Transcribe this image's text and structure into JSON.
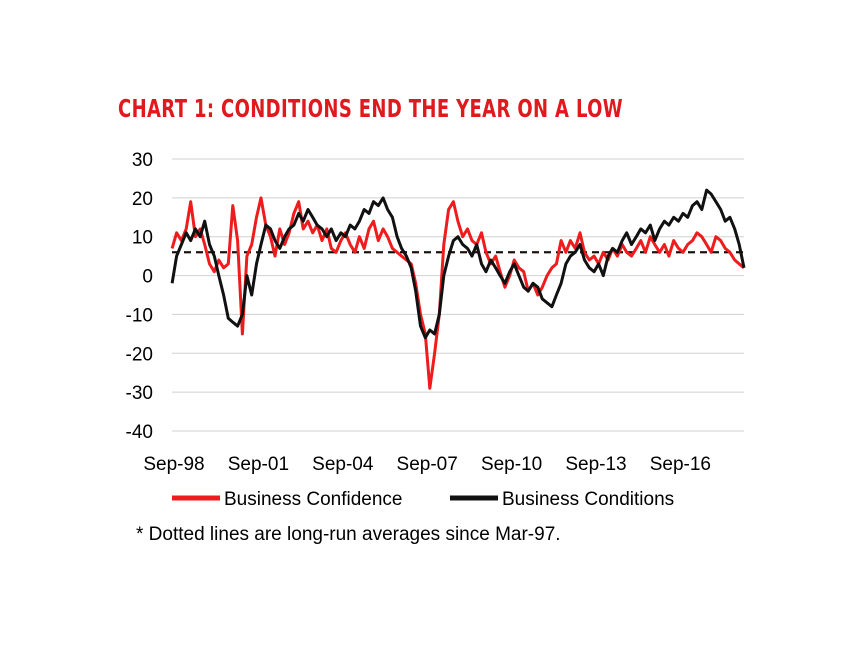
{
  "chart_data": {
    "type": "line",
    "title": "CHART 1: CONDITIONS END THE YEAR ON A LOW",
    "footnote": "* Dotted lines are long-run  averages since Mar-97.",
    "ylim": [
      -40,
      30
    ],
    "yticks": [
      30,
      20,
      10,
      0,
      -10,
      -20,
      -30,
      -40
    ],
    "xtick_labels": [
      "Sep-98",
      "Sep-01",
      "Sep-04",
      "Sep-07",
      "Sep-10",
      "Sep-13",
      "Sep-16"
    ],
    "xtick_values": [
      1998.667,
      2001.667,
      2004.667,
      2007.667,
      2010.667,
      2013.667,
      2016.667
    ],
    "xlim": [
      1998.667,
      2019.0
    ],
    "grid": "horizontal",
    "legend_position": "bottom",
    "series": [
      {
        "name": "Business Confidence",
        "color": "#ee1c1c",
        "average": 6,
        "x": [
          1998.67,
          1998.83,
          1999.0,
          1999.17,
          1999.33,
          1999.5,
          1999.67,
          1999.83,
          2000.0,
          2000.17,
          2000.33,
          2000.5,
          2000.67,
          2000.83,
          2001.0,
          2001.17,
          2001.33,
          2001.5,
          2001.67,
          2001.83,
          2002.0,
          2002.17,
          2002.33,
          2002.5,
          2002.67,
          2002.83,
          2003.0,
          2003.17,
          2003.33,
          2003.5,
          2003.67,
          2003.83,
          2004.0,
          2004.17,
          2004.33,
          2004.5,
          2004.67,
          2004.83,
          2005.0,
          2005.17,
          2005.33,
          2005.5,
          2005.67,
          2005.83,
          2006.0,
          2006.17,
          2006.33,
          2006.5,
          2006.67,
          2006.83,
          2007.0,
          2007.17,
          2007.33,
          2007.5,
          2007.67,
          2007.83,
          2008.0,
          2008.17,
          2008.33,
          2008.5,
          2008.67,
          2008.83,
          2009.0,
          2009.17,
          2009.33,
          2009.5,
          2009.67,
          2009.83,
          2010.0,
          2010.17,
          2010.33,
          2010.5,
          2010.67,
          2010.83,
          2011.0,
          2011.17,
          2011.33,
          2011.5,
          2011.67,
          2011.83,
          2012.0,
          2012.17,
          2012.33,
          2012.5,
          2012.67,
          2012.83,
          2013.0,
          2013.17,
          2013.33,
          2013.5,
          2013.67,
          2013.83,
          2014.0,
          2014.17,
          2014.33,
          2014.5,
          2014.67,
          2014.83,
          2015.0,
          2015.17,
          2015.33,
          2015.5,
          2015.67,
          2015.83,
          2016.0,
          2016.17,
          2016.33,
          2016.5,
          2016.67,
          2016.83,
          2017.0,
          2017.17,
          2017.33,
          2017.5,
          2017.67,
          2017.83,
          2018.0,
          2018.17,
          2018.33,
          2018.5,
          2018.67,
          2018.83,
          2019.0
        ],
        "values": [
          7,
          11,
          9,
          12,
          19,
          10,
          12,
          8,
          3,
          1,
          4,
          2,
          3,
          18,
          9,
          -15,
          5,
          8,
          15,
          20,
          13,
          10,
          5,
          12,
          8,
          11,
          16,
          19,
          12,
          14,
          11,
          13,
          9,
          12,
          7,
          6,
          9,
          11,
          8,
          6,
          10,
          7,
          12,
          14,
          9,
          12,
          10,
          7,
          6,
          5,
          4,
          3,
          -2,
          -10,
          -15,
          -29,
          -20,
          -10,
          8,
          17,
          19,
          14,
          10,
          12,
          9,
          8,
          11,
          6,
          3,
          5,
          1,
          -3,
          0,
          4,
          2,
          1,
          -4,
          -2,
          -5,
          -3,
          0,
          2,
          3,
          9,
          6,
          9,
          7,
          11,
          6,
          4,
          5,
          3,
          6,
          4,
          7,
          5,
          8,
          6,
          5,
          7,
          9,
          6,
          10,
          8,
          6,
          8,
          5,
          9,
          7,
          6,
          8,
          9,
          11,
          10,
          8,
          6,
          10,
          9,
          7,
          6,
          4,
          3,
          2
        ]
      },
      {
        "name": "Business Conditions",
        "color": "#111111",
        "average": 6,
        "x": [
          1998.67,
          1998.83,
          1999.0,
          1999.17,
          1999.33,
          1999.5,
          1999.67,
          1999.83,
          2000.0,
          2000.17,
          2000.33,
          2000.5,
          2000.67,
          2000.83,
          2001.0,
          2001.17,
          2001.33,
          2001.5,
          2001.67,
          2001.83,
          2002.0,
          2002.17,
          2002.33,
          2002.5,
          2002.67,
          2002.83,
          2003.0,
          2003.17,
          2003.33,
          2003.5,
          2003.67,
          2003.83,
          2004.0,
          2004.17,
          2004.33,
          2004.5,
          2004.67,
          2004.83,
          2005.0,
          2005.17,
          2005.33,
          2005.5,
          2005.67,
          2005.83,
          2006.0,
          2006.17,
          2006.33,
          2006.5,
          2006.67,
          2006.83,
          2007.0,
          2007.17,
          2007.33,
          2007.5,
          2007.67,
          2007.83,
          2008.0,
          2008.17,
          2008.33,
          2008.5,
          2008.67,
          2008.83,
          2009.0,
          2009.17,
          2009.33,
          2009.5,
          2009.67,
          2009.83,
          2010.0,
          2010.17,
          2010.33,
          2010.5,
          2010.67,
          2010.83,
          2011.0,
          2011.17,
          2011.33,
          2011.5,
          2011.67,
          2011.83,
          2012.0,
          2012.17,
          2012.33,
          2012.5,
          2012.67,
          2012.83,
          2013.0,
          2013.17,
          2013.33,
          2013.5,
          2013.67,
          2013.83,
          2014.0,
          2014.17,
          2014.33,
          2014.5,
          2014.67,
          2014.83,
          2015.0,
          2015.17,
          2015.33,
          2015.5,
          2015.67,
          2015.83,
          2016.0,
          2016.17,
          2016.33,
          2016.5,
          2016.67,
          2016.83,
          2017.0,
          2017.17,
          2017.33,
          2017.5,
          2017.67,
          2017.83,
          2018.0,
          2018.17,
          2018.33,
          2018.5,
          2018.67,
          2018.83,
          2019.0
        ],
        "values": [
          -2,
          5,
          8,
          11,
          9,
          12,
          10,
          14,
          8,
          5,
          0,
          -5,
          -11,
          -12,
          -13,
          -10,
          0,
          -5,
          3,
          8,
          13,
          12,
          9,
          7,
          10,
          12,
          13,
          16,
          14,
          17,
          15,
          13,
          12,
          10,
          12,
          9,
          11,
          10,
          13,
          12,
          14,
          17,
          16,
          19,
          18,
          20,
          17,
          15,
          10,
          7,
          5,
          2,
          -4,
          -13,
          -16,
          -14,
          -15,
          -10,
          0,
          5,
          9,
          10,
          8,
          7,
          5,
          8,
          3,
          1,
          4,
          2,
          0,
          -2,
          1,
          3,
          0,
          -3,
          -4,
          -2,
          -3,
          -6,
          -7,
          -8,
          -5,
          -2,
          3,
          5,
          6,
          8,
          4,
          2,
          1,
          3,
          0,
          5,
          7,
          6,
          9,
          11,
          8,
          10,
          12,
          11,
          13,
          9,
          12,
          14,
          13,
          15,
          14,
          16,
          15,
          18,
          19,
          17,
          22,
          21,
          19,
          17,
          14,
          15,
          12,
          8,
          2
        ]
      }
    ]
  }
}
